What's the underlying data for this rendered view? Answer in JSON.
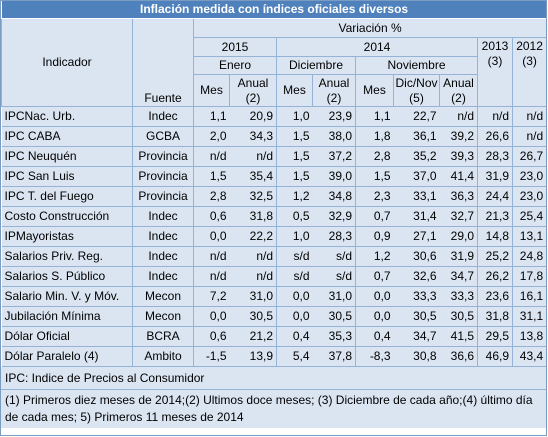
{
  "title": "Inflación medida con índices oficiales diversos",
  "header": {
    "indicador": "Indicador",
    "fuente": "Fuente",
    "variacion": "Variación %",
    "y2015": "2015",
    "y2014": "2014",
    "y2013": "2013",
    "y2013_note": "(3)",
    "y2012": "2012",
    "y2012_note": "(3)",
    "enero": "Enero",
    "diciembre": "Diciembre",
    "noviembre": "Noviembre",
    "mes": "Mes",
    "anual": "Anual",
    "note2": "(2)",
    "dicnov": "Dic/Nov",
    "note5": "(5)"
  },
  "rows": [
    {
      "ind": "IPCNac. Urb.",
      "fuente": "Indec",
      "v": [
        "1,1",
        "20,9",
        "1,0",
        "23,9",
        "1,1",
        "22,7",
        "n/d",
        "n/d",
        "n/d"
      ]
    },
    {
      "ind": "IPC CABA",
      "fuente": "GCBA",
      "v": [
        "2,0",
        "34,3",
        "1,5",
        "38,0",
        "1,8",
        "36,1",
        "39,2",
        "26,6",
        "n/d"
      ]
    },
    {
      "ind": "IPC Neuquén",
      "fuente": "Provincia",
      "v": [
        "n/d",
        "n/d",
        "1,5",
        "37,2",
        "2,8",
        "35,2",
        "39,3",
        "28,3",
        "26,7"
      ]
    },
    {
      "ind": "IPC San Luis",
      "fuente": "Provincia",
      "v": [
        "1,5",
        "35,4",
        "1,5",
        "39,0",
        "1,5",
        "37,0",
        "41,4",
        "31,9",
        "23,0"
      ]
    },
    {
      "ind": "IPC T. del Fuego",
      "fuente": "Provincia",
      "v": [
        "2,8",
        "32,5",
        "1,2",
        "34,8",
        "2,3",
        "33,1",
        "36,3",
        "24,4",
        "23,0"
      ]
    },
    {
      "ind": "Costo Construcción",
      "fuente": "Indec",
      "v": [
        "0,6",
        "31,8",
        "0,5",
        "32,9",
        "0,7",
        "31,4",
        "32,7",
        "21,3",
        "25,4"
      ]
    },
    {
      "ind": "IPMayoristas",
      "fuente": "Indec",
      "v": [
        "0,0",
        "22,2",
        "1,0",
        "28,3",
        "0,9",
        "27,1",
        "29,0",
        "14,8",
        "13,1"
      ]
    },
    {
      "ind": "Salarios Priv. Reg.",
      "fuente": "Indec",
      "v": [
        "n/d",
        "n/d",
        "s/d",
        "s/d",
        "1,2",
        "30,6",
        "31,9",
        "25,2",
        "24,8"
      ]
    },
    {
      "ind": "Salarios S. Público",
      "fuente": "Indec",
      "v": [
        "n/d",
        "n/d",
        "s/d",
        "s/d",
        "0,7",
        "32,6",
        "34,7",
        "26,2",
        "17,8"
      ]
    },
    {
      "ind": "Salario Min. V. y Móv.",
      "fuente": "Mecon",
      "v": [
        "7,2",
        "31,0",
        "0,0",
        "31,0",
        "0,0",
        "33,3",
        "33,3",
        "23,6",
        "16,1"
      ]
    },
    {
      "ind": "Jubilación Mínima",
      "fuente": "Mecon",
      "v": [
        "0,0",
        "30,5",
        "0,0",
        "30,5",
        "0,0",
        "30,5",
        "30,5",
        "31,8",
        "31,1"
      ]
    },
    {
      "ind": "Dólar Oficial",
      "fuente": "BCRA",
      "v": [
        "0,6",
        "21,2",
        "0,4",
        "35,3",
        "0,4",
        "34,7",
        "41,5",
        "29,5",
        "13,8"
      ]
    },
    {
      "ind": "Dólar Paralelo (4)",
      "fuente": "Ambito",
      "v": [
        "-1,5",
        "13,9",
        "5,4",
        "37,8",
        "-8,3",
        "30,8",
        "36,6",
        "46,9",
        "43,4"
      ]
    }
  ],
  "footer": {
    "ipc_note": "IPC: Indice de Precios al Consumidor",
    "notes": "(1) Primeros diez meses de 2014;(2) Ultimos doce meses; (3) Diciembre de cada año;(4) último día de cada mes; 5) Primeros 11 meses de 2014"
  }
}
